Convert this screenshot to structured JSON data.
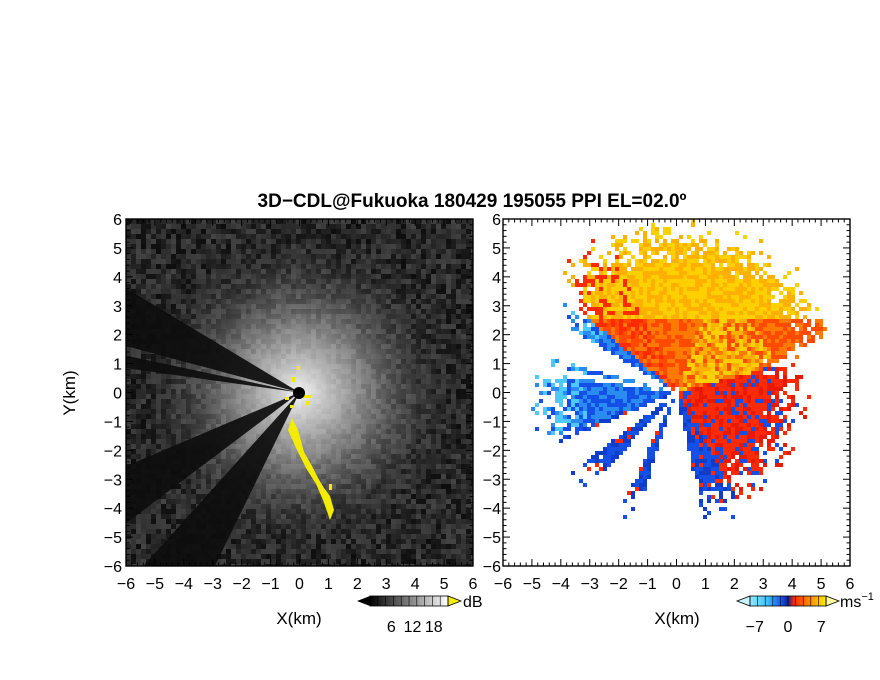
{
  "title": "3D−CDL@Fukuoka 180429 195055 PPI EL=02.0º",
  "colors": {
    "background": "#ffffff",
    "snr_dark": "#141414",
    "snr_light": "#f2f2f2",
    "highlight": "#f4ec00",
    "vel_blue": "#1450e6",
    "vel_cyan": "#3fc4ff",
    "vel_red": "#ff2a00",
    "vel_yellow": "#ffe600"
  },
  "chart_data": [
    {
      "type": "heatmap",
      "name": "snr",
      "xlabel": "X(km)",
      "ylabel": "Y(km)",
      "xlim": [
        -6,
        6
      ],
      "ylim": [
        -6,
        6
      ],
      "xticks": [
        "−6",
        "−5",
        "−4",
        "−3",
        "−2",
        "−1",
        "0",
        "1",
        "2",
        "3",
        "4",
        "5",
        "6"
      ],
      "yticks": [
        "6",
        "5",
        "4",
        "3",
        "2",
        "1",
        "0",
        "−1",
        "−2",
        "−3",
        "−4",
        "−5",
        "−6"
      ],
      "colorbar": {
        "unit": "dB",
        "tick_labels": [
          "6",
          "12",
          "18"
        ],
        "range": [
          0,
          22
        ],
        "scheme": "grayscale"
      },
      "blocked_sectors_deg": [
        [
          149,
          165
        ],
        [
          168,
          172
        ],
        [
          203,
          217
        ],
        [
          228,
          244
        ]
      ],
      "highlight_color_name": "yellow"
    },
    {
      "type": "heatmap",
      "name": "doppler_velocity",
      "xlabel": "X(km)",
      "xlim": [
        -6,
        6
      ],
      "ylim": [
        -6,
        6
      ],
      "xticks": [
        "−6",
        "−5",
        "−4",
        "−3",
        "−2",
        "−1",
        "0",
        "1",
        "2",
        "3",
        "4",
        "5",
        "6"
      ],
      "yticks": [
        "6",
        "5",
        "4",
        "3",
        "2",
        "1",
        "0",
        "−1",
        "−2",
        "−3",
        "−4",
        "−5",
        "−6"
      ],
      "colorbar": {
        "unit": "ms",
        "unit_exponent": "−1",
        "tick_labels": [
          "−7",
          "0",
          "7"
        ],
        "range": [
          -8,
          8
        ],
        "scheme": "blue-red-yellow"
      },
      "data_sector_deg": [
        0,
        360
      ],
      "blocked_sectors_deg": [
        [
          149,
          165
        ],
        [
          168,
          172
        ],
        [
          203,
          217
        ],
        [
          228,
          244
        ],
        [
          252,
          282
        ]
      ]
    }
  ]
}
